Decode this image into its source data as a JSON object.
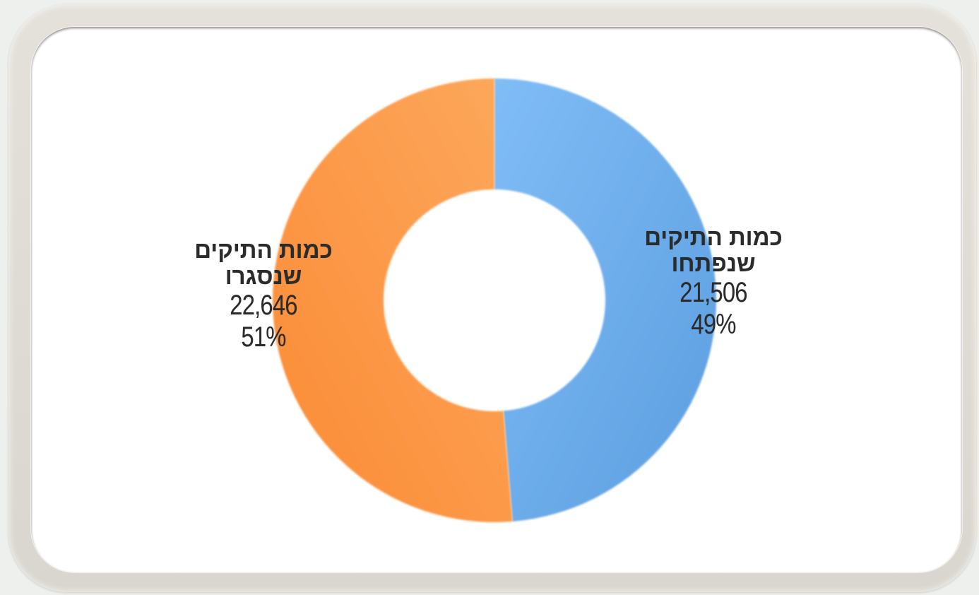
{
  "chart_data": {
    "type": "pie",
    "donut": true,
    "categories": [
      "כמות התיקים שנפתחו",
      "כמות התיקים שנסגרו"
    ],
    "values": [
      21506,
      22646
    ],
    "labels": [
      {
        "category": "כמות התיקים שנפתחו",
        "value": "21,506",
        "percent": "49%"
      },
      {
        "category": "כמות התיקים שנסגרו",
        "value": "22,646",
        "percent": "51%"
      }
    ],
    "colors": [
      "#6aa9e8",
      "#fb9a48"
    ],
    "legend": "none"
  }
}
